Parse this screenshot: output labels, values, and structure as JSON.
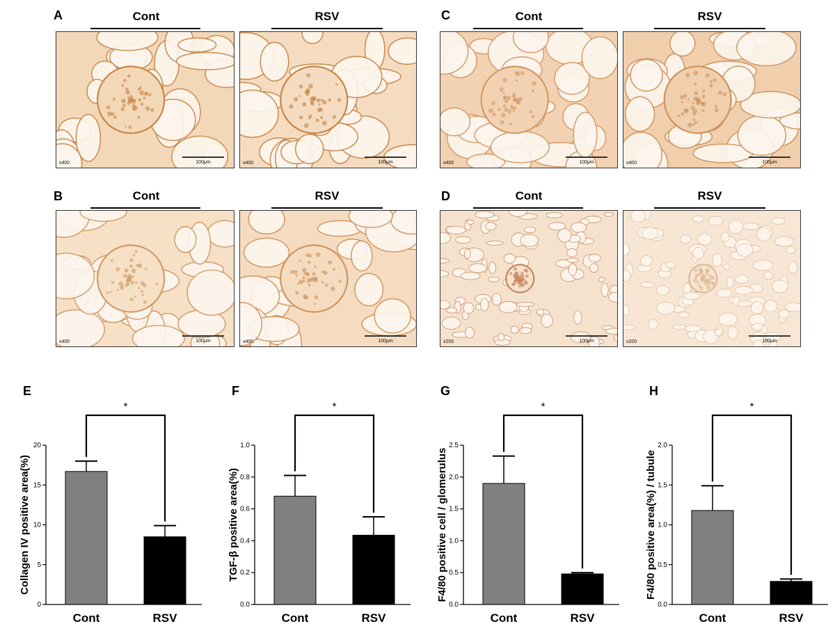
{
  "micrographs": [
    {
      "letter": "A",
      "group_labels": [
        "Cont",
        "RSV"
      ],
      "images": [
        {
          "tone": "#f3d8b8",
          "stroke": "#c9874a",
          "mag": "x400",
          "scale": "100μm"
        },
        {
          "tone": "#f5dcc0",
          "stroke": "#c78548",
          "mag": "x400",
          "scale": "100μm"
        }
      ]
    },
    {
      "letter": "C",
      "group_labels": [
        "Cont",
        "RSV"
      ],
      "images": [
        {
          "tone": "#f2d2b2",
          "stroke": "#d29a68",
          "mag": "x400",
          "scale": "100μm"
        },
        {
          "tone": "#f1cfad",
          "stroke": "#cd935e",
          "mag": "x400",
          "scale": "100μm"
        }
      ]
    },
    {
      "letter": "B",
      "group_labels": [
        "Cont",
        "RSV"
      ],
      "images": [
        {
          "tone": "#f6e0c6",
          "stroke": "#d29b66",
          "mag": "x400",
          "scale": "100μm"
        },
        {
          "tone": "#f5dcc0",
          "stroke": "#cf955e",
          "mag": "x400",
          "scale": "100μm"
        }
      ]
    },
    {
      "letter": "D",
      "group_labels": [
        "Cont",
        "RSV"
      ],
      "images": [
        {
          "tone": "#f5e2cc",
          "stroke": "#c68560",
          "mag": "x200",
          "scale": "100μm"
        },
        {
          "tone": "#f6e6d3",
          "stroke": "#e0b996",
          "mag": "x200",
          "scale": "100μm"
        }
      ]
    }
  ],
  "chart_data": [
    {
      "panel": "E",
      "type": "bar",
      "categories": [
        "Cont",
        "RSV"
      ],
      "values": [
        16.7,
        8.5
      ],
      "errors": [
        1.3,
        1.4
      ],
      "colors": [
        "#808080",
        "#000000"
      ],
      "ylabel": "Collagen IV positive area(%)",
      "ylim": [
        0,
        20
      ],
      "yticks": [
        0,
        5,
        10,
        15,
        20
      ],
      "ytick_labels": [
        "0",
        "5",
        "10",
        "15",
        "20"
      ],
      "significance": "*"
    },
    {
      "panel": "F",
      "type": "bar",
      "categories": [
        "Cont",
        "RSV"
      ],
      "values": [
        0.68,
        0.435
      ],
      "errors": [
        0.13,
        0.115
      ],
      "colors": [
        "#808080",
        "#000000"
      ],
      "ylabel": "TGF-β positive area(%)",
      "ylim": [
        0,
        1.0
      ],
      "yticks": [
        0,
        0.2,
        0.4,
        0.6,
        0.8,
        1.0
      ],
      "ytick_labels": [
        "0.0",
        "0.2",
        "0.4",
        "0.6",
        "0.8",
        "1.0"
      ],
      "significance": "*"
    },
    {
      "panel": "G",
      "type": "bar",
      "categories": [
        "Cont",
        "RSV"
      ],
      "values": [
        1.9,
        0.48
      ],
      "errors": [
        0.43,
        0.02
      ],
      "colors": [
        "#808080",
        "#000000"
      ],
      "ylabel": "F4/80 positive cell / glomerulus",
      "ylim": [
        0,
        2.5
      ],
      "yticks": [
        0,
        0.5,
        1.0,
        1.5,
        2.0,
        2.5
      ],
      "ytick_labels": [
        "0.0",
        "0.5",
        "1.0",
        "1.5",
        "2.0",
        "2.5"
      ],
      "significance": "*"
    },
    {
      "panel": "H",
      "type": "bar",
      "categories": [
        "Cont",
        "RSV"
      ],
      "values": [
        1.18,
        0.29
      ],
      "errors": [
        0.31,
        0.03
      ],
      "colors": [
        "#808080",
        "#000000"
      ],
      "ylabel": "F4/80 positive area(%) / tubule",
      "ylim": [
        0,
        2.0
      ],
      "yticks": [
        0,
        0.5,
        1.0,
        1.5,
        2.0
      ],
      "ytick_labels": [
        "0.0",
        "0.5",
        "1.0",
        "1.5",
        "2.0"
      ],
      "significance": "*"
    }
  ]
}
